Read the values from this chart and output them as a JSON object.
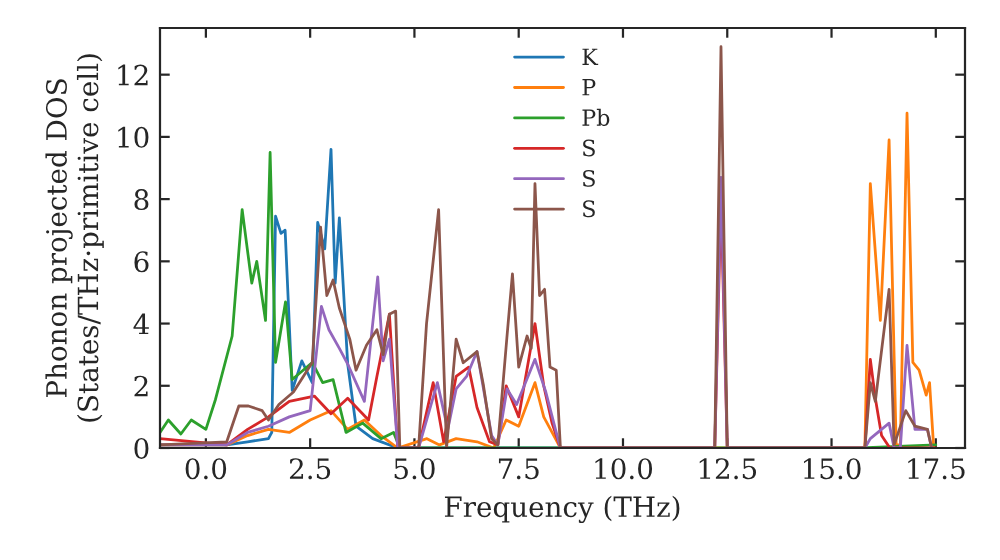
{
  "chart_data": {
    "type": "line",
    "xlabel": "Frequency (THz)",
    "ylabel": "Phonon projected DOS\n(States/THz·primitive cell)",
    "xlim": [
      -1.1,
      18.2
    ],
    "ylim": [
      0,
      13.5
    ],
    "xticks": [
      {
        "value": 0,
        "label": "0.0"
      },
      {
        "value": 2.5,
        "label": "2.5"
      },
      {
        "value": 5,
        "label": "5.0"
      },
      {
        "value": 7.5,
        "label": "7.5"
      },
      {
        "value": 10,
        "label": "10.0"
      },
      {
        "value": 12.5,
        "label": "12.5"
      },
      {
        "value": 15,
        "label": "15.0"
      },
      {
        "value": 17.5,
        "label": "17.5"
      }
    ],
    "yticks": [
      0,
      2,
      4,
      6,
      8,
      10,
      12
    ],
    "legend": "top",
    "grid": false,
    "marker": "none",
    "line_style": "solid",
    "series": [
      {
        "name": "K",
        "color": "#1f77b4",
        "x": [
          -1.1,
          0.5,
          1.0,
          1.5,
          1.58,
          1.67,
          1.8,
          1.9,
          2.07,
          2.3,
          2.55,
          2.68,
          2.85,
          3.0,
          3.1,
          3.2,
          3.4,
          3.6,
          4.0,
          4.6,
          8.5
        ],
        "values": [
          0.1,
          0.1,
          0.2,
          0.3,
          0.5,
          7.45,
          6.9,
          7.0,
          1.85,
          2.8,
          2.1,
          7.25,
          6.4,
          9.6,
          5.3,
          7.4,
          2.7,
          0.7,
          0.3,
          0.0,
          0.0
        ]
      },
      {
        "name": "P",
        "color": "#ff7f0e",
        "x": [
          -1.1,
          0.5,
          1.0,
          1.5,
          2.0,
          2.5,
          3.0,
          3.4,
          3.8,
          4.2,
          4.6,
          5.3,
          5.6,
          6.0,
          6.5,
          6.9,
          7.2,
          7.5,
          7.89,
          8.1,
          8.3,
          8.5,
          15.8,
          15.93,
          16.17,
          16.38,
          16.55,
          16.65,
          16.81,
          16.95,
          17.1,
          17.27,
          17.35,
          17.45
        ],
        "values": [
          0.1,
          0.1,
          0.4,
          0.6,
          0.5,
          0.9,
          1.2,
          0.6,
          0.9,
          0.4,
          0.0,
          0.3,
          0.1,
          0.3,
          0.2,
          0.0,
          0.9,
          0.7,
          2.1,
          1.0,
          0.5,
          0.0,
          0.0,
          8.5,
          4.1,
          9.9,
          0.1,
          0.1,
          10.76,
          2.75,
          2.5,
          1.7,
          2.1,
          0.0
        ]
      },
      {
        "name": "Pb",
        "color": "#2ca02c",
        "x": [
          -1.1,
          -0.9,
          -0.6,
          -0.35,
          0.0,
          0.23,
          0.63,
          0.87,
          1.1,
          1.22,
          1.43,
          1.54,
          1.67,
          1.91,
          2.07,
          2.55,
          2.8,
          3.05,
          3.36,
          3.76,
          4.2,
          4.5,
          4.65,
          15.7,
          17.5
        ],
        "values": [
          0.5,
          0.9,
          0.45,
          0.9,
          0.6,
          1.56,
          3.6,
          7.66,
          5.3,
          6.0,
          4.1,
          9.5,
          2.75,
          4.7,
          2.2,
          2.75,
          2.1,
          2.2,
          0.5,
          0.8,
          0.3,
          0.5,
          0.0,
          0.0,
          0.1
        ]
      },
      {
        "name": "S",
        "color": "#d62728",
        "x": [
          -1.1,
          0.5,
          1.0,
          1.5,
          2.0,
          2.6,
          3.0,
          3.4,
          3.9,
          4.1,
          4.4,
          4.6,
          5.1,
          5.45,
          5.7,
          6.0,
          6.3,
          6.5,
          6.8,
          7.0,
          7.2,
          7.5,
          7.89,
          8.1,
          8.3,
          8.5,
          12.2,
          12.35,
          12.5,
          15.8,
          15.93,
          16.05,
          16.2,
          16.4,
          17.5
        ],
        "values": [
          0.3,
          0.1,
          0.6,
          1.0,
          1.5,
          1.67,
          1.1,
          1.6,
          0.9,
          2.3,
          4.3,
          0.0,
          0.0,
          2.1,
          0.2,
          2.3,
          2.6,
          1.3,
          0.2,
          0.1,
          2.0,
          1.0,
          4.0,
          2.0,
          0.8,
          0.0,
          0.0,
          8.0,
          0.0,
          0.0,
          2.85,
          1.6,
          0.4,
          0.0,
          0.0
        ]
      },
      {
        "name": "S",
        "color": "#9467bd",
        "x": [
          -1.1,
          0.5,
          1.0,
          1.5,
          2.0,
          2.5,
          2.77,
          2.95,
          3.2,
          3.4,
          3.8,
          4.12,
          4.25,
          4.4,
          4.6,
          5.1,
          5.55,
          5.8,
          6.0,
          6.25,
          6.5,
          6.85,
          7.0,
          7.22,
          7.45,
          7.89,
          8.15,
          8.4,
          8.5,
          12.2,
          12.35,
          12.5,
          15.8,
          15.93,
          16.38,
          16.5,
          16.65,
          16.81,
          17.0,
          17.3,
          17.4
        ],
        "values": [
          0.1,
          0.1,
          0.5,
          0.7,
          1.0,
          1.2,
          4.55,
          3.8,
          3.2,
          2.7,
          1.5,
          5.5,
          2.8,
          3.5,
          0.0,
          0.0,
          2.1,
          0.6,
          1.9,
          2.3,
          3.1,
          0.4,
          0.1,
          1.9,
          1.4,
          2.85,
          1.8,
          0.5,
          0.0,
          0.0,
          8.7,
          0.0,
          0.0,
          0.3,
          0.8,
          0.0,
          0.0,
          3.3,
          0.6,
          0.6,
          0.0
        ]
      },
      {
        "name": "S",
        "color": "#8c564b",
        "x": [
          -1.1,
          0.5,
          0.79,
          1.02,
          1.35,
          1.5,
          1.75,
          2.1,
          2.55,
          2.75,
          2.9,
          3.05,
          3.2,
          3.45,
          3.6,
          3.85,
          4.1,
          4.25,
          4.4,
          4.55,
          4.65,
          5.1,
          5.29,
          5.58,
          5.77,
          6.0,
          6.17,
          6.5,
          6.65,
          6.85,
          7.0,
          7.22,
          7.35,
          7.5,
          7.7,
          7.8,
          7.89,
          8.0,
          8.12,
          8.25,
          8.4,
          8.5,
          12.2,
          12.35,
          12.5,
          15.8,
          15.93,
          16.05,
          16.38,
          16.5,
          16.78,
          17.0,
          17.3,
          17.4
        ],
        "values": [
          0.1,
          0.2,
          1.35,
          1.35,
          1.2,
          0.9,
          1.4,
          1.8,
          2.75,
          7.1,
          4.9,
          5.4,
          4.5,
          3.5,
          2.5,
          3.3,
          3.8,
          3.0,
          4.3,
          4.4,
          0.0,
          0.0,
          4.0,
          7.66,
          0.0,
          3.5,
          2.74,
          3.1,
          2.05,
          0.3,
          0.1,
          3.6,
          5.6,
          2.6,
          3.6,
          3.2,
          8.5,
          4.9,
          5.1,
          2.6,
          2.5,
          0.0,
          0.0,
          12.9,
          0.0,
          0.0,
          2.1,
          1.5,
          5.1,
          0.1,
          1.2,
          0.7,
          0.6,
          0.0
        ]
      }
    ]
  }
}
